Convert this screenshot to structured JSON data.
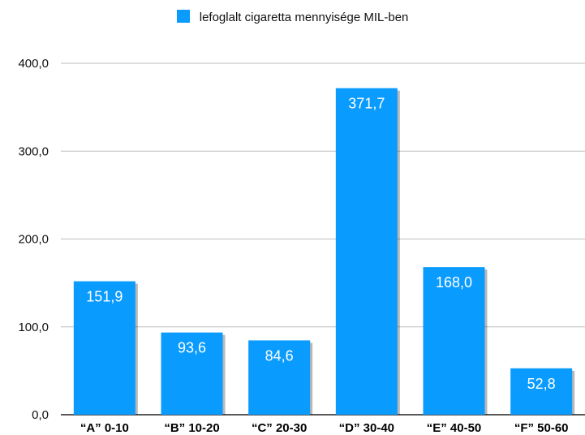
{
  "chart_data": {
    "type": "bar",
    "title": "",
    "xlabel": "",
    "ylabel": "",
    "categories": [
      "“A” 0-10",
      "“B” 10-20",
      "“C” 20-30",
      "“D” 30-40",
      "“E” 40-50",
      "“F” 50-60"
    ],
    "series": [
      {
        "name": "lefoglalt cigaretta mennyisége MIL-ben",
        "values": [
          151.9,
          93.6,
          84.6,
          371.7,
          168.0,
          52.8
        ],
        "value_labels": [
          "151,9",
          "93,6",
          "84,6",
          "371,7",
          "168,0",
          "52,8"
        ]
      }
    ],
    "ylim": [
      0,
      400
    ],
    "yticks": [
      0,
      100,
      200,
      300,
      400
    ],
    "ytick_labels": [
      "0,0",
      "100,0",
      "200,0",
      "300,0",
      "400,0"
    ],
    "grid": true,
    "legend_position": "top-center",
    "bar_color": "#0A9BFF"
  }
}
